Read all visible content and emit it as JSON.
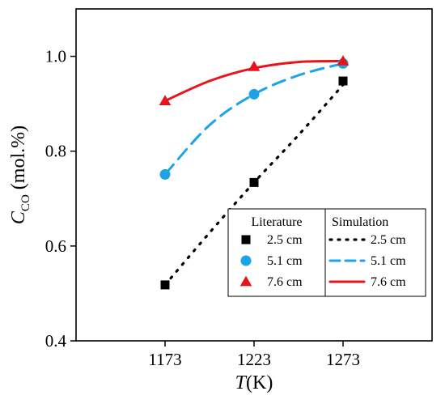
{
  "chart_data": {
    "type": "scatter",
    "x_ticks": [
      1173,
      1223,
      1273
    ],
    "y_ticks": [
      0.4,
      0.6,
      0.8,
      1.0
    ],
    "y_tick_labels": [
      "0.4",
      "0.6",
      "0.8",
      "1.0"
    ],
    "xlim": [
      1123,
      1323
    ],
    "ylim": [
      0.4,
      1.1
    ],
    "xlabel": {
      "italic": "T",
      "rest": "(K)"
    },
    "ylabel": {
      "italic": "C",
      "sub": "CO",
      "rest": " (mol.%)"
    },
    "grid": false,
    "legend_placement": "bottom-right",
    "legend_headers": [
      "Literature",
      "Simulation"
    ],
    "literature": [
      {
        "name": "2.5 cm",
        "marker": "square",
        "color": "#000000",
        "x": [
          1173,
          1223,
          1273
        ],
        "y": [
          0.518,
          0.734,
          0.948
        ]
      },
      {
        "name": "5.1 cm",
        "marker": "circle",
        "color": "#1EA3E8",
        "x": [
          1173,
          1223,
          1273
        ],
        "y": [
          0.751,
          0.92,
          0.985
        ]
      },
      {
        "name": "7.6 cm",
        "marker": "triangle",
        "color": "#E8141C",
        "x": [
          1173,
          1223,
          1273
        ],
        "y": [
          0.906,
          0.978,
          0.99
        ]
      }
    ],
    "simulation": [
      {
        "name": "2.5 cm",
        "style": "dotted",
        "color": "#000000",
        "x": [
          1173,
          1198,
          1223,
          1248,
          1273
        ],
        "y": [
          0.518,
          0.628,
          0.734,
          0.834,
          0.94
        ]
      },
      {
        "name": "5.1 cm",
        "style": "dashed",
        "color": "#1EA3E8",
        "x": [
          1173,
          1198,
          1223,
          1248,
          1273
        ],
        "y": [
          0.751,
          0.855,
          0.92,
          0.96,
          0.985
        ]
      },
      {
        "name": "7.6 cm",
        "style": "solid",
        "color": "#E8141C",
        "x": [
          1173,
          1198,
          1223,
          1248,
          1273
        ],
        "y": [
          0.906,
          0.948,
          0.975,
          0.988,
          0.99
        ]
      }
    ]
  }
}
